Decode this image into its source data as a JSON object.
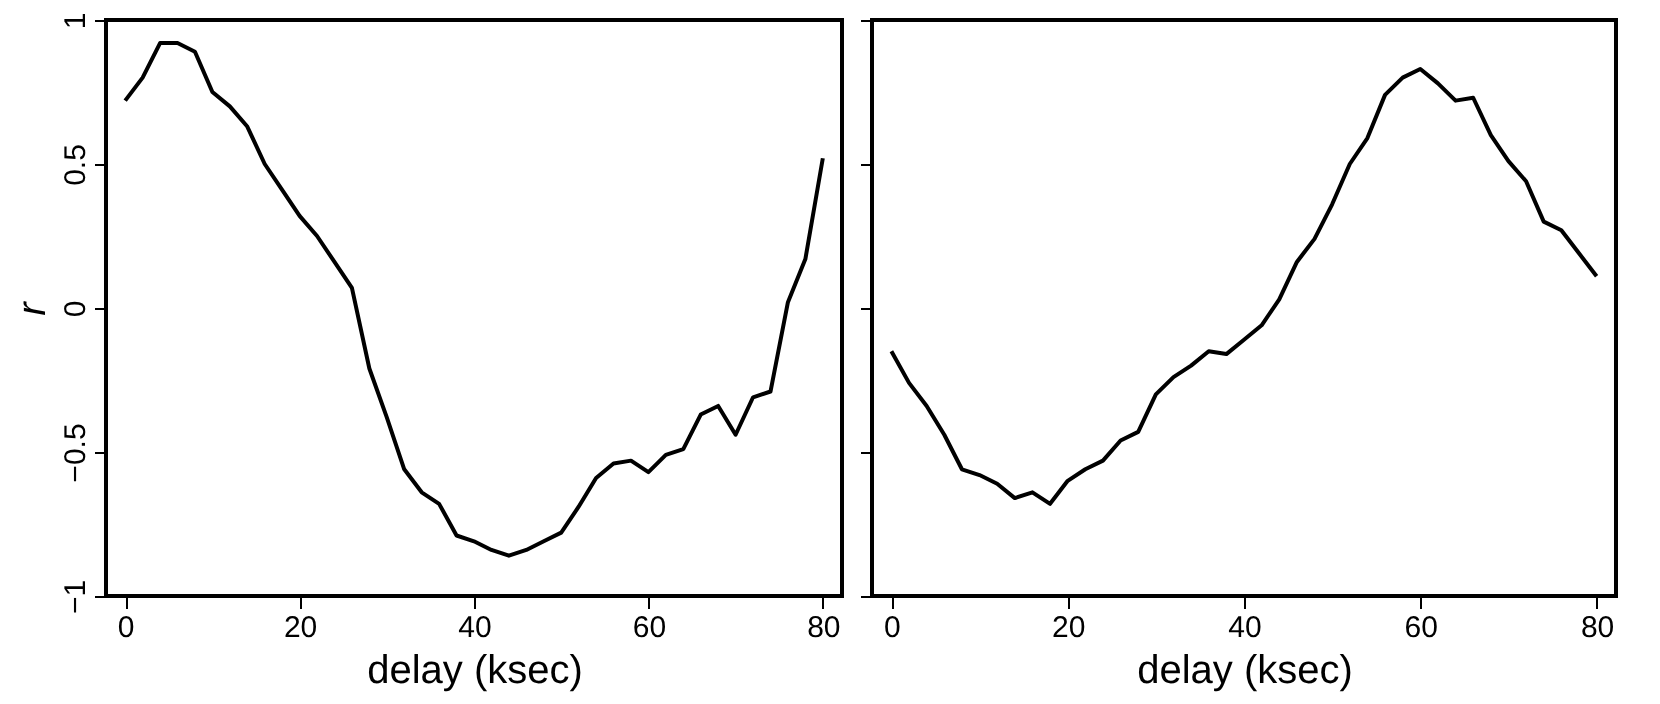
{
  "chart_data": [
    {
      "type": "line",
      "xlabel": "delay (ksec)",
      "ylabel": "r",
      "x": [
        0,
        2,
        4,
        6,
        8,
        10,
        12,
        14,
        16,
        18,
        20,
        22,
        24,
        26,
        28,
        30,
        32,
        34,
        36,
        38,
        40,
        42,
        44,
        46,
        48,
        50,
        52,
        54,
        56,
        58,
        60,
        62,
        64,
        66,
        68,
        70,
        72,
        74,
        76,
        78,
        80
      ],
      "series": [
        {
          "color": "#000000",
          "values": [
            0.72,
            0.8,
            0.92,
            0.92,
            0.89,
            0.75,
            0.7,
            0.63,
            0.5,
            0.41,
            0.32,
            0.25,
            0.16,
            0.07,
            -0.21,
            -0.38,
            -0.56,
            -0.64,
            -0.68,
            -0.79,
            -0.81,
            -0.84,
            -0.86,
            -0.84,
            -0.81,
            -0.78,
            -0.69,
            -0.59,
            -0.54,
            -0.53,
            -0.57,
            -0.51,
            -0.49,
            -0.37,
            -0.34,
            -0.44,
            -0.31,
            -0.29,
            0.02,
            0.17,
            0.52
          ]
        }
      ],
      "xlim": [
        -2.2,
        82.2
      ],
      "xticks": [
        0,
        20,
        40,
        60,
        80
      ],
      "ylim": [
        -1,
        1
      ],
      "yticks": [
        -1,
        -0.5,
        0,
        0.5,
        1
      ],
      "grid": false,
      "marker": "none",
      "line_style": "solid"
    },
    {
      "type": "line",
      "xlabel": "delay (ksec)",
      "x": [
        0,
        2,
        4,
        6,
        8,
        10,
        12,
        14,
        16,
        18,
        20,
        22,
        24,
        26,
        28,
        30,
        32,
        34,
        36,
        38,
        40,
        42,
        44,
        46,
        48,
        50,
        52,
        54,
        56,
        58,
        60,
        62,
        64,
        66,
        68,
        70,
        72,
        74,
        76,
        78,
        80
      ],
      "series": [
        {
          "color": "#000000",
          "values": [
            -0.15,
            -0.26,
            -0.34,
            -0.44,
            -0.56,
            -0.58,
            -0.61,
            -0.66,
            -0.64,
            -0.68,
            -0.6,
            -0.56,
            -0.53,
            -0.46,
            -0.43,
            -0.3,
            -0.24,
            -0.2,
            -0.15,
            -0.16,
            -0.11,
            -0.06,
            0.03,
            0.16,
            0.24,
            0.36,
            0.5,
            0.59,
            0.74,
            0.8,
            0.83,
            0.78,
            0.72,
            0.73,
            0.6,
            0.51,
            0.44,
            0.3,
            0.27,
            0.19,
            0.11
          ]
        }
      ],
      "xlim": [
        -2.2,
        82.2
      ],
      "xticks": [
        0,
        20,
        40,
        60,
        80
      ],
      "ylim": [
        -1,
        1
      ],
      "yticks": [
        -1,
        -0.5,
        0,
        0.5,
        1
      ],
      "tick_labels": "x",
      "grid": false,
      "marker": "none",
      "line_style": "solid"
    }
  ]
}
